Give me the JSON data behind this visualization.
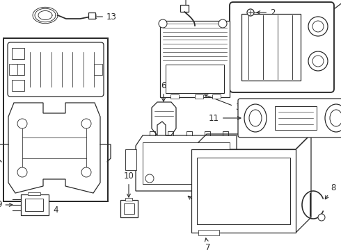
{
  "bg_color": "#ffffff",
  "line_color": "#2a2a2a",
  "lw": 0.9,
  "fs": 8.5
}
